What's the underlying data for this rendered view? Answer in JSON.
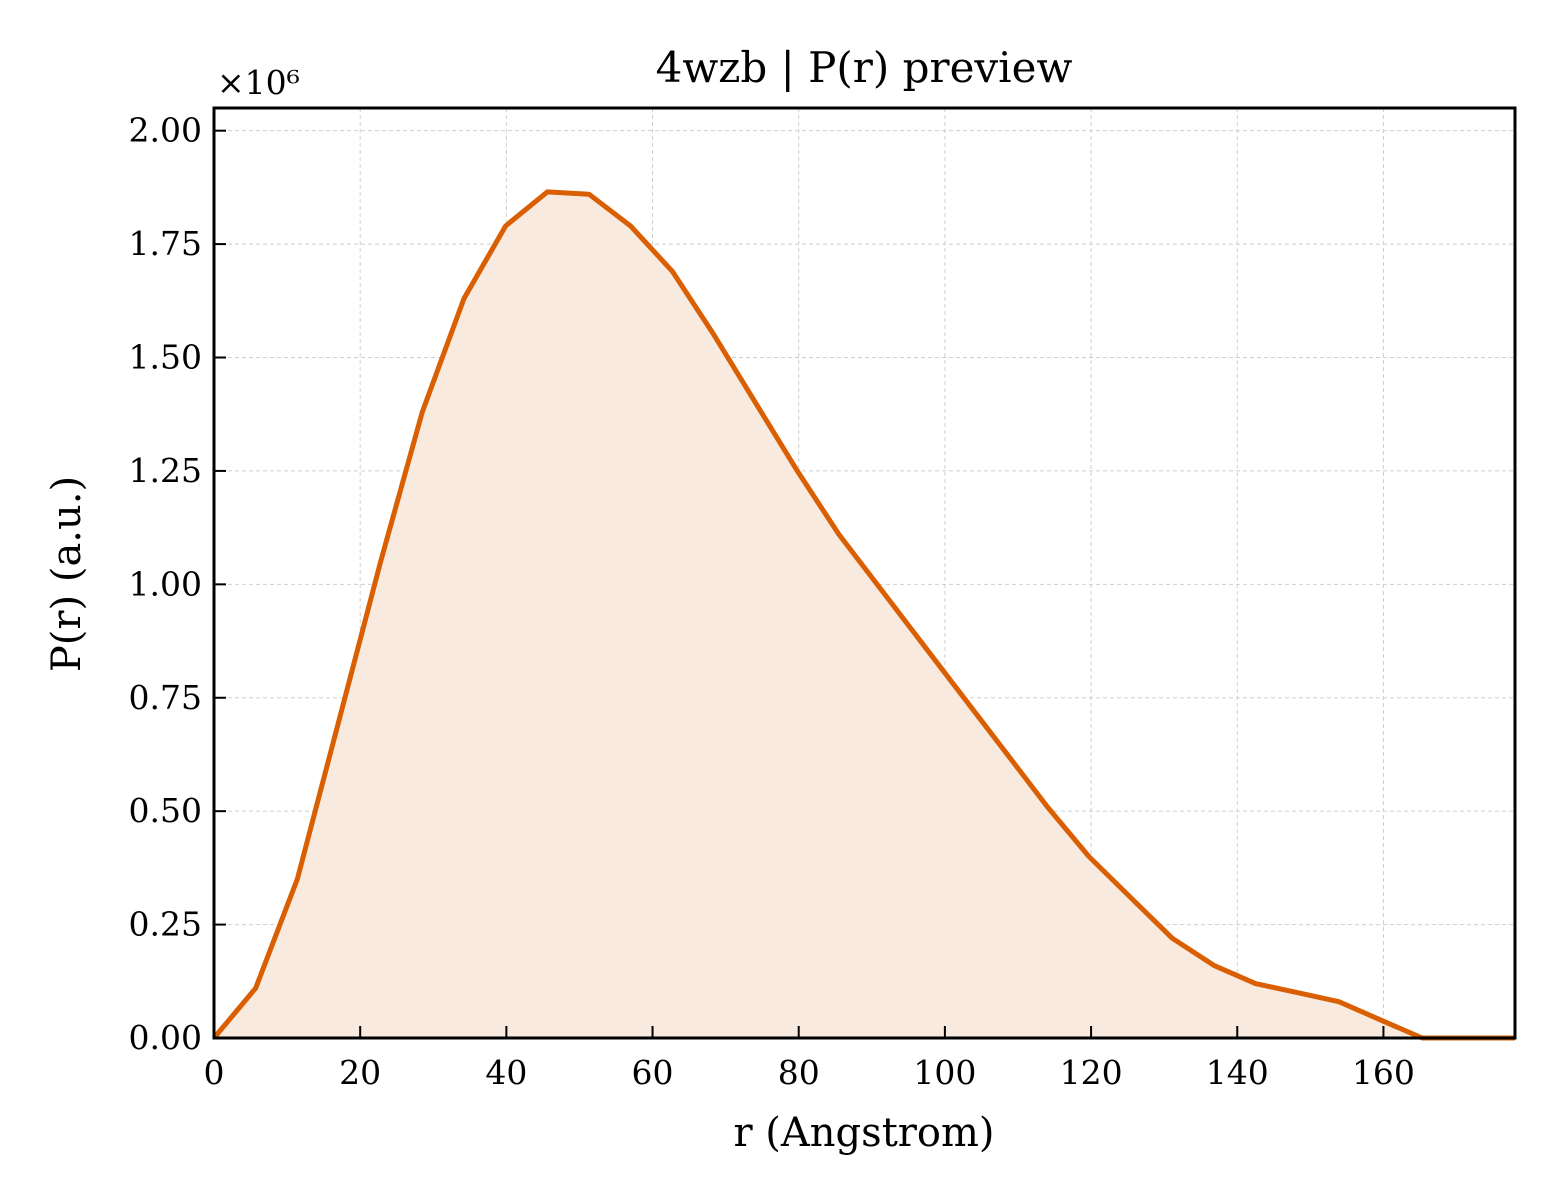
{
  "chart_data": {
    "type": "area",
    "title": "4wzb | P(r) preview",
    "xlabel": "r (Angstrom)",
    "ylabel": "P(r) (a.u.)",
    "y_multiplier_label": "×10⁶",
    "y_multiplier": 1000000,
    "xlim": [
      0,
      178
    ],
    "ylim": [
      0,
      2.05
    ],
    "x_ticks": [
      0,
      20,
      40,
      60,
      80,
      100,
      120,
      140,
      160
    ],
    "x_tick_labels": [
      "0",
      "20",
      "40",
      "60",
      "80",
      "100",
      "120",
      "140",
      "160"
    ],
    "y_ticks": [
      0,
      0.25,
      0.5,
      0.75,
      1.0,
      1.25,
      1.5,
      1.75,
      2.0
    ],
    "y_tick_labels": [
      "0.00",
      "0.25",
      "0.50",
      "0.75",
      "1.00",
      "1.25",
      "1.50",
      "1.75",
      "2.00"
    ],
    "grid": true,
    "series": [
      {
        "color": "#d95f02",
        "fill_color": "#f9eadf",
        "x": [
          0,
          5.7,
          11.4,
          17.1,
          22.8,
          28.5,
          34.2,
          39.9,
          45.6,
          51.3,
          57.0,
          62.7,
          68.4,
          74.1,
          79.8,
          85.5,
          91.2,
          96.9,
          102.6,
          108.3,
          114.0,
          119.7,
          125.4,
          131.1,
          136.8,
          142.5,
          148.2,
          153.9,
          159.6,
          165.3,
          171.0,
          176.7
        ],
        "y": [
          0.0,
          0.11,
          0.35,
          0.7,
          1.05,
          1.38,
          1.63,
          1.79,
          1.865,
          1.86,
          1.79,
          1.69,
          1.55,
          1.4,
          1.25,
          1.11,
          0.99,
          0.87,
          0.75,
          0.63,
          0.51,
          0.4,
          0.31,
          0.22,
          0.16,
          0.12,
          0.1,
          0.08,
          0.04,
          -0.01,
          0.0,
          -0.04
        ]
      }
    ]
  }
}
